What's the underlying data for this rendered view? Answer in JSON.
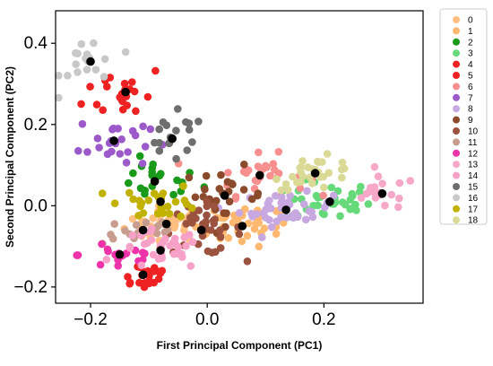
{
  "chart_data": {
    "type": "scatter",
    "xlabel": "First Principal Component (PC1)",
    "ylabel": "Second Principal Component (PC2)",
    "xlim": [
      -0.26,
      0.37
    ],
    "ylim": [
      -0.24,
      0.48
    ],
    "x_ticks": [
      -0.2,
      0.0,
      0.2
    ],
    "x_tick_labels": [
      "−0.2",
      "0.0",
      "0.2"
    ],
    "y_ticks": [
      -0.2,
      0.0,
      0.2,
      0.4
    ],
    "y_tick_labels": [
      "−0.2",
      "0.0",
      "0.2",
      "0.4"
    ],
    "grid": false,
    "legend_position": "outside-right",
    "centroid_color": "#000000",
    "series": [
      {
        "name": "0",
        "color": "#ffbf80",
        "centroid": [
          -0.07,
          -0.045
        ],
        "spread": [
          0.035,
          0.022
        ],
        "count": 30
      },
      {
        "name": "1",
        "color": "#ffb870",
        "centroid": [
          0.06,
          -0.05
        ],
        "spread": [
          0.04,
          0.025
        ],
        "count": 40
      },
      {
        "name": "2",
        "color": "#1a9a1a",
        "centroid": [
          -0.09,
          0.06
        ],
        "spread": [
          0.04,
          0.025
        ],
        "count": 22
      },
      {
        "name": "3",
        "color": "#66d97a",
        "centroid": [
          0.21,
          0.01
        ],
        "spread": [
          0.035,
          0.025
        ],
        "count": 35
      },
      {
        "name": "4",
        "color": "#ee2222",
        "centroid": [
          -0.11,
          -0.17
        ],
        "spread": [
          0.025,
          0.018
        ],
        "count": 22
      },
      {
        "name": "5",
        "color": "#ee2222",
        "centroid": [
          -0.14,
          0.28
        ],
        "spread": [
          0.035,
          0.035
        ],
        "count": 22
      },
      {
        "name": "6",
        "color": "#f78f8f",
        "centroid": [
          0.09,
          0.075
        ],
        "spread": [
          0.04,
          0.025
        ],
        "count": 30
      },
      {
        "name": "7",
        "color": "#9b59c9",
        "centroid": [
          -0.16,
          0.16
        ],
        "spread": [
          0.03,
          0.035
        ],
        "count": 25
      },
      {
        "name": "8",
        "color": "#c8a8e0",
        "centroid": [
          0.135,
          -0.01
        ],
        "spread": [
          0.04,
          0.02
        ],
        "count": 40
      },
      {
        "name": "9",
        "color": "#8b4a2b",
        "centroid": [
          0.03,
          0.025
        ],
        "spread": [
          0.035,
          0.035
        ],
        "count": 28
      },
      {
        "name": "10",
        "color": "#9b5340",
        "centroid": [
          -0.01,
          -0.06
        ],
        "spread": [
          0.035,
          0.03
        ],
        "count": 35
      },
      {
        "name": "11",
        "color": "#c89c8f",
        "centroid": [
          -0.11,
          -0.06
        ],
        "spread": [
          0.035,
          0.018
        ],
        "count": 20
      },
      {
        "name": "12",
        "color": "#ee33aa",
        "centroid": [
          -0.15,
          -0.12
        ],
        "spread": [
          0.035,
          0.025
        ],
        "count": 18
      },
      {
        "name": "13",
        "color": "#f7a8c8",
        "centroid": [
          0.3,
          0.03
        ],
        "spread": [
          0.03,
          0.02
        ],
        "count": 18
      },
      {
        "name": "14",
        "color": "#f7a0c8",
        "centroid": [
          -0.08,
          -0.11
        ],
        "spread": [
          0.035,
          0.025
        ],
        "count": 35
      },
      {
        "name": "15",
        "color": "#6e6e6e",
        "centroid": [
          -0.06,
          0.165
        ],
        "spread": [
          0.03,
          0.03
        ],
        "count": 18
      },
      {
        "name": "16",
        "color": "#c8c8c8",
        "centroid": [
          -0.2,
          0.355
        ],
        "spread": [
          0.025,
          0.035
        ],
        "count": 18
      },
      {
        "name": "17",
        "color": "#c2b200",
        "centroid": [
          -0.08,
          0.01
        ],
        "spread": [
          0.035,
          0.02
        ],
        "count": 28
      },
      {
        "name": "18",
        "color": "#dada96",
        "centroid": [
          0.185,
          0.08
        ],
        "spread": [
          0.035,
          0.02
        ],
        "count": 30
      }
    ]
  }
}
